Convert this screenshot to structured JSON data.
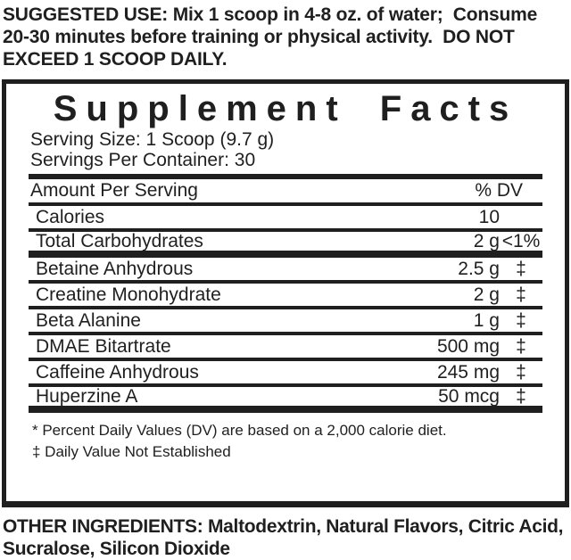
{
  "colors": {
    "ink": "#1f1f1f",
    "background": "#ffffff"
  },
  "suggested_use": {
    "lines": [
      "SUGGESTED USE: Mix 1 scoop in 4-8 oz. of water;  Consume",
      "20-30 minutes before training or physical activity.  DO NOT",
      "EXCEED 1 SCOOP DAILY."
    ]
  },
  "panel": {
    "title": "Supplement Facts",
    "serving_size": "Serving Size: 1 Scoop (9.7 g)",
    "servings_per_container": "Servings Per Container: 30",
    "header": {
      "left": "Amount Per Serving",
      "right": "% DV"
    },
    "rows": [
      {
        "name": "Calories",
        "amount": "10",
        "dv": ""
      },
      {
        "name": "Total Carbohydrates",
        "amount": "2 g",
        "dv": "<1%"
      },
      {
        "name": "Betaine Anhydrous",
        "amount": "2.5 g",
        "dv": "‡"
      },
      {
        "name": "Creatine Monohydrate",
        "amount": "2 g",
        "dv": "‡"
      },
      {
        "name": "Beta Alanine",
        "amount": "1 g",
        "dv": "‡"
      },
      {
        "name": "DMAE Bitartrate",
        "amount": "500 mg",
        "dv": "‡"
      },
      {
        "name": "Caffeine Anhydrous",
        "amount": "245 mg",
        "dv": "‡"
      },
      {
        "name": "Huperzine A",
        "amount": "50 mcg",
        "dv": "‡"
      }
    ],
    "footnotes": [
      "* Percent Daily Values (DV) are based on a 2,000 calorie diet.",
      "‡ Daily Value Not Established"
    ]
  },
  "other_ingredients": {
    "lines": [
      "OTHER INGREDIENTS: Maltodextrin, Natural Flavors, Citric Acid,",
      "Sucralose, Silicon Dioxide"
    ]
  }
}
